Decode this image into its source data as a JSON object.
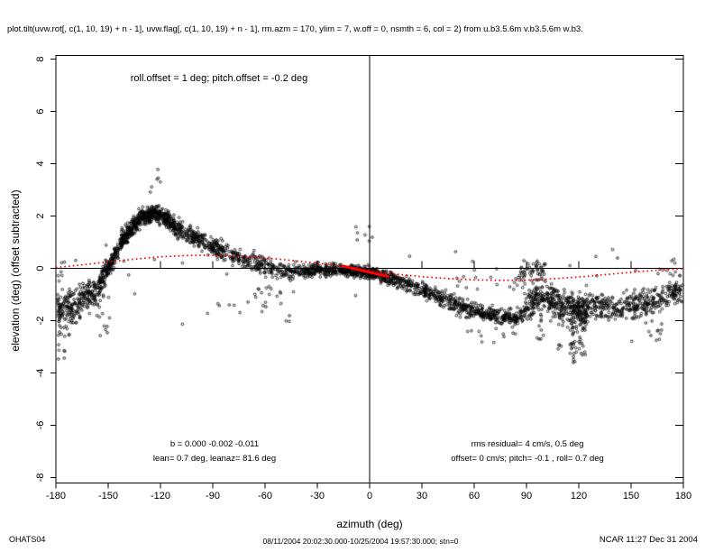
{
  "chart_data": {
    "type": "scatter",
    "title": "plot.tilt(uvw.rot[, c(1, 10, 19) + n - 1], uvw.flag[, c(1, 10, 19) + n - 1], rm.azm = 170, ylim = 7, w.off = 0, nsmth = 6, col = 2) from u.b3.5.6m v.b3.5.6m w.b3.",
    "xlabel": "azimuth (deg)",
    "ylabel": "elevation (deg)  (offset subtracted)",
    "xlim": [
      -180,
      180
    ],
    "ylim": [
      -8,
      8
    ],
    "x_ticks": [
      -180,
      -150,
      -120,
      -90,
      -60,
      -30,
      0,
      30,
      60,
      90,
      120,
      150,
      180
    ],
    "y_ticks": [
      -8,
      -6,
      -4,
      -2,
      0,
      2,
      4,
      6,
      8
    ],
    "grid": false,
    "point_color": "#000000",
    "fit_color": "#ff0000",
    "annotations": {
      "top": "roll.offset = 1 deg; pitch.offset = -0.2 deg",
      "bottom_left_line1": "b =  0.000 -0.002 -0.011",
      "bottom_left_line2": "lean= 0.7 deg, leanaz= 81.6 deg",
      "bottom_right_line1": "rms residual= 4 cm/s, 0.5 deg",
      "bottom_right_line2": "offset= 0 cm/s; pitch= -0.1 , roll=  0.7 deg"
    },
    "red_dotted_curve": [
      [
        -180,
        0.03
      ],
      [
        -165,
        0.13
      ],
      [
        -150,
        0.25
      ],
      [
        -135,
        0.35
      ],
      [
        -120,
        0.44
      ],
      [
        -105,
        0.49
      ],
      [
        -95,
        0.5
      ],
      [
        -85,
        0.48
      ],
      [
        -70,
        0.44
      ],
      [
        -55,
        0.37
      ],
      [
        -40,
        0.27
      ],
      [
        -25,
        0.16
      ],
      [
        -10,
        0.03
      ],
      [
        0,
        -0.08
      ],
      [
        15,
        -0.22
      ],
      [
        30,
        -0.32
      ],
      [
        45,
        -0.39
      ],
      [
        60,
        -0.44
      ],
      [
        75,
        -0.46
      ],
      [
        90,
        -0.45
      ],
      [
        105,
        -0.4
      ],
      [
        120,
        -0.33
      ],
      [
        135,
        -0.24
      ],
      [
        150,
        -0.15
      ],
      [
        165,
        -0.07
      ],
      [
        180,
        -0.01
      ]
    ],
    "red_solid_segment": [
      [
        -16,
        0.1
      ],
      [
        11,
        -0.32
      ]
    ],
    "seed": 7,
    "scatter_bands": [
      {
        "az": [
          -180,
          -168
        ],
        "n": 120,
        "mean": [
          -1.6,
          -1.5
        ],
        "spread": [
          1.0,
          0.9
        ]
      },
      {
        "az": [
          -168,
          -155
        ],
        "n": 130,
        "mean": [
          -1.4,
          -0.8
        ],
        "spread": [
          0.9,
          0.7
        ]
      },
      {
        "az": [
          -155,
          -143
        ],
        "n": 160,
        "mean": [
          -0.6,
          0.9
        ],
        "spread": [
          0.6,
          0.55
        ]
      },
      {
        "az": [
          -143,
          -133
        ],
        "n": 170,
        "mean": [
          1.0,
          1.8
        ],
        "spread": [
          0.55,
          0.5
        ]
      },
      {
        "az": [
          -133,
          -122
        ],
        "n": 180,
        "mean": [
          1.9,
          2.15
        ],
        "spread": [
          0.5,
          0.5
        ]
      },
      {
        "az": [
          -122,
          -112
        ],
        "n": 150,
        "mean": [
          2.1,
          1.7
        ],
        "spread": [
          0.5,
          0.5
        ]
      },
      {
        "az": [
          -112,
          -95
        ],
        "n": 150,
        "mean": [
          1.6,
          1.0
        ],
        "spread": [
          0.5,
          0.5
        ]
      },
      {
        "az": [
          -95,
          -75
        ],
        "n": 140,
        "mean": [
          0.95,
          0.45
        ],
        "spread": [
          0.5,
          0.5
        ]
      },
      {
        "az": [
          -75,
          -55
        ],
        "n": 120,
        "mean": [
          0.4,
          0.0
        ],
        "spread": [
          0.55,
          0.5
        ]
      },
      {
        "az": [
          -55,
          -35
        ],
        "n": 110,
        "mean": [
          -0.1,
          -0.1
        ],
        "spread": [
          0.5,
          0.45
        ]
      },
      {
        "az": [
          -35,
          -15
        ],
        "n": 170,
        "mean": [
          -0.05,
          -0.05
        ],
        "spread": [
          0.4,
          0.35
        ]
      },
      {
        "az": [
          -15,
          5
        ],
        "n": 220,
        "mean": [
          -0.1,
          -0.2
        ],
        "spread": [
          0.35,
          0.35
        ]
      },
      {
        "az": [
          5,
          25
        ],
        "n": 150,
        "mean": [
          -0.25,
          -0.65
        ],
        "spread": [
          0.4,
          0.45
        ]
      },
      {
        "az": [
          25,
          45
        ],
        "n": 130,
        "mean": [
          -0.75,
          -1.2
        ],
        "spread": [
          0.45,
          0.5
        ]
      },
      {
        "az": [
          45,
          65
        ],
        "n": 150,
        "mean": [
          -1.3,
          -1.7
        ],
        "spread": [
          0.5,
          0.45
        ]
      },
      {
        "az": [
          65,
          88
        ],
        "n": 170,
        "mean": [
          -1.75,
          -1.9
        ],
        "spread": [
          0.45,
          0.45
        ]
      },
      {
        "az": [
          88,
          100
        ],
        "n": 110,
        "mean": [
          -1.5,
          -1.1
        ],
        "spread": [
          0.85,
          0.9
        ]
      },
      {
        "az": [
          100,
          115
        ],
        "n": 140,
        "mean": [
          -1.1,
          -1.5
        ],
        "spread": [
          0.9,
          0.95
        ]
      },
      {
        "az": [
          115,
          125
        ],
        "n": 140,
        "mean": [
          -1.6,
          -1.6
        ],
        "spread": [
          1.0,
          0.95
        ]
      },
      {
        "az": [
          125,
          145
        ],
        "n": 130,
        "mean": [
          -1.4,
          -1.5
        ],
        "spread": [
          0.75,
          0.7
        ]
      },
      {
        "az": [
          145,
          162
        ],
        "n": 120,
        "mean": [
          -1.4,
          -1.3
        ],
        "spread": [
          0.75,
          0.7
        ]
      },
      {
        "az": [
          162,
          180
        ],
        "n": 120,
        "mean": [
          -1.2,
          -0.8
        ],
        "spread": [
          0.7,
          0.7
        ]
      }
    ],
    "scatter_patches": [
      {
        "az": [
          -179,
          -172
        ],
        "el": [
          -3.6,
          -1.6
        ],
        "n": 18
      },
      {
        "az": [
          -180,
          -174
        ],
        "el": [
          -0.5,
          0.3
        ],
        "n": 8
      },
      {
        "az": [
          -158,
          -149
        ],
        "el": [
          -2.6,
          -0.9
        ],
        "n": 14
      },
      {
        "az": [
          -129,
          -118
        ],
        "el": [
          2.7,
          3.8
        ],
        "n": 6
      },
      {
        "az": [
          -70,
          -40
        ],
        "el": [
          -1.5,
          -0.7
        ],
        "n": 16
      },
      {
        "az": [
          -12,
          4
        ],
        "el": [
          0.7,
          1.6
        ],
        "n": 7
      },
      {
        "az": [
          50,
          90
        ],
        "el": [
          -1.0,
          -0.3
        ],
        "n": 16
      },
      {
        "az": [
          55,
          85
        ],
        "el": [
          -2.9,
          -2.2
        ],
        "n": 12
      },
      {
        "az": [
          86,
          101
        ],
        "el": [
          -0.6,
          0.3
        ],
        "n": 55
      },
      {
        "az": [
          96,
          100
        ],
        "el": [
          -2.9,
          -1.6
        ],
        "n": 10
      },
      {
        "az": [
          108,
          112
        ],
        "el": [
          -3.1,
          -1.4
        ],
        "n": 14
      },
      {
        "az": [
          115,
          119
        ],
        "el": [
          -3.7,
          -1.6
        ],
        "n": 28
      },
      {
        "az": [
          120,
          124
        ],
        "el": [
          -3.4,
          -1.4
        ],
        "n": 20
      },
      {
        "az": [
          148,
          170
        ],
        "el": [
          -2.8,
          -2.0
        ],
        "n": 12
      },
      {
        "az": [
          165,
          180
        ],
        "el": [
          -0.3,
          0.4
        ],
        "n": 12
      },
      {
        "az": [
          -180,
          180
        ],
        "el": [
          -2.3,
          0.9
        ],
        "n": 50
      }
    ]
  },
  "footer": {
    "left": "OHATS04",
    "center": "08/11/2004 20:02:30.000-10/25/2004 19:57:30.000; stn=0",
    "right": "NCAR 11:27 Dec 31 2004"
  }
}
